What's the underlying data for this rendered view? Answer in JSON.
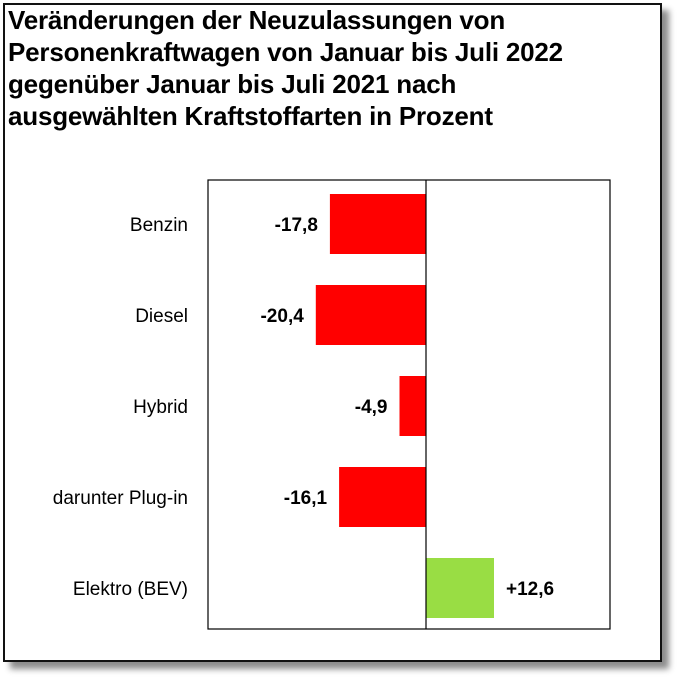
{
  "chart_data": {
    "type": "bar",
    "orientation": "horizontal",
    "title_lines": [
      "Veränderungen der Neuzulassungen von",
      "Personenkraftwagen von Januar bis  Juli 2022",
      "gegenüber Januar bis Juli 2021 nach",
      "ausgewählten Kraftstoffarten in Prozent"
    ],
    "categories": [
      "Benzin",
      "Diesel",
      "Hybrid",
      "darunter Plug-in",
      "Elektro (BEV)"
    ],
    "values": [
      -17.8,
      -20.4,
      -4.9,
      -16.1,
      12.6
    ],
    "value_labels": [
      "-17,8",
      "-20,4",
      "-4,9",
      "-16,1",
      "+12,6"
    ],
    "xlim": [
      -40,
      40
    ],
    "grid": false,
    "legend": "none",
    "colors": {
      "negative": "#ff0000",
      "positive": "#99dd44",
      "axis": "#000000"
    }
  }
}
